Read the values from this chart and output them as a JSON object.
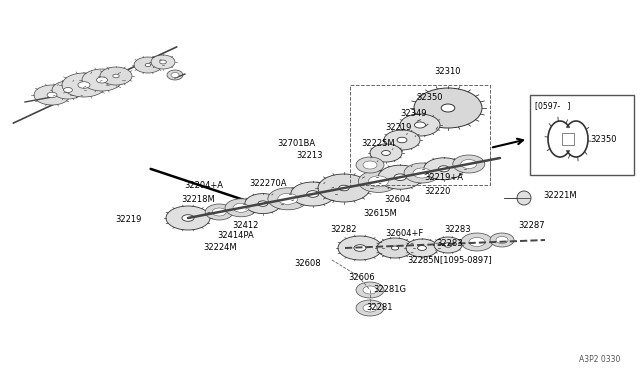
{
  "bg_color": "#ffffff",
  "fig_width": 6.4,
  "fig_height": 3.72,
  "dpi": 100,
  "text_color": "#000000",
  "label_fontsize": 6.0,
  "diagram_note": "A3P2 0330",
  "inset_label": "[0597-   ]",
  "inset_part": "32350",
  "gear_edge": "#333333",
  "gear_face": "#e8e8e8",
  "gear_dark": "#999999"
}
